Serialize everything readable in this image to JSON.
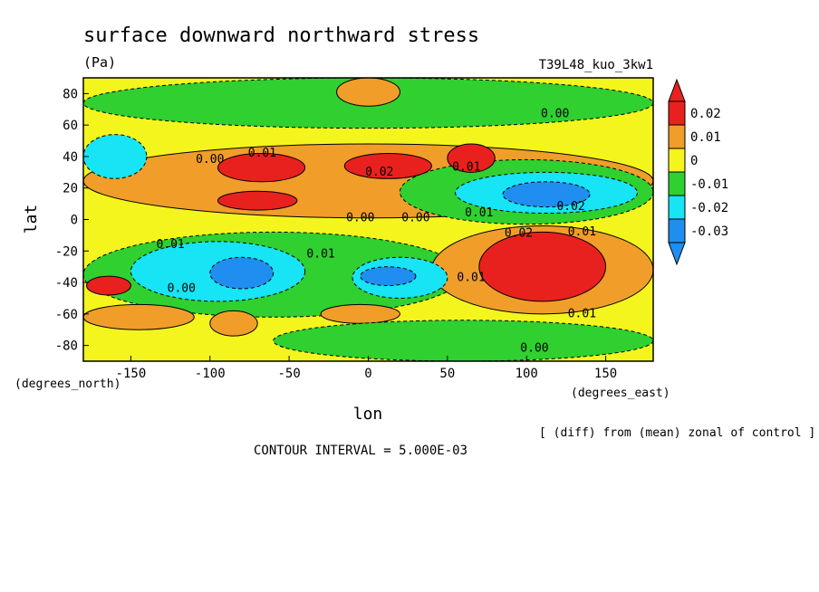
{
  "chart_data": {
    "type": "heatmap",
    "title": "surface downward northward stress",
    "units": "(Pa)",
    "run_label": "T39L48_kuo_3kw1",
    "xlabel": "lon",
    "ylabel": "lat",
    "x_units": "(degrees_east)",
    "y_units": "(degrees_north)",
    "xlim": [
      -180,
      180
    ],
    "ylim": [
      -90,
      90
    ],
    "x_ticks": [
      -150,
      -100,
      -50,
      0,
      50,
      100,
      150
    ],
    "y_ticks": [
      80,
      60,
      40,
      20,
      0,
      -20,
      -40,
      -60,
      -80
    ],
    "x_tick_labels": [
      "-150",
      "-100",
      "-50",
      "0",
      "50",
      "100",
      "150"
    ],
    "y_tick_labels": [
      "80",
      "60",
      "40",
      "20",
      "0",
      "-20",
      "-40",
      "-60",
      "-80"
    ],
    "note": "[ (diff) from (mean) zonal of control ]",
    "contour_interval": "CONTOUR INTERVAL = 5.000E-03",
    "colorbar": {
      "labels": [
        "0.02",
        "0.01",
        "0",
        "-0.01",
        "-0.02",
        "-0.03"
      ],
      "levels": [
        0.02,
        0.01,
        0,
        -0.01,
        -0.02,
        -0.03
      ],
      "colors": [
        "#e8211e",
        "#f09d2a",
        "#f5f51e",
        "#2fd02f",
        "#17e4f4",
        "#1f8ef0"
      ]
    },
    "background_level_color": "#f5f51e",
    "regions": [
      {
        "level": -0.01,
        "lon": [
          -180,
          180
        ],
        "lat": [
          58,
          90
        ]
      },
      {
        "level": 0.01,
        "lon": [
          -180,
          180
        ],
        "lat": [
          1,
          48
        ]
      },
      {
        "level": -0.01,
        "lon": [
          20,
          180
        ],
        "lat": [
          -3,
          38
        ]
      },
      {
        "level": -0.01,
        "lon": [
          -180,
          60
        ],
        "lat": [
          -62,
          -8
        ]
      },
      {
        "level": 0.01,
        "lon": [
          40,
          180
        ],
        "lat": [
          -60,
          -4
        ]
      },
      {
        "level": 0.02,
        "lon": [
          -95,
          -40
        ],
        "lat": [
          24,
          42
        ]
      },
      {
        "level": 0.02,
        "lon": [
          -95,
          -45
        ],
        "lat": [
          6,
          18
        ]
      },
      {
        "level": 0.02,
        "lon": [
          -15,
          40
        ],
        "lat": [
          26,
          42
        ]
      },
      {
        "level": 0.02,
        "lon": [
          50,
          80
        ],
        "lat": [
          30,
          48
        ]
      },
      {
        "level": 0.02,
        "lon": [
          70,
          150
        ],
        "lat": [
          -52,
          -8
        ]
      },
      {
        "level": 0.02,
        "lon": [
          -178,
          -150
        ],
        "lat": [
          -48,
          -36
        ]
      },
      {
        "level": -0.02,
        "lon": [
          55,
          170
        ],
        "lat": [
          4,
          30
        ]
      },
      {
        "level": -0.03,
        "lon": [
          85,
          140
        ],
        "lat": [
          8,
          24
        ]
      },
      {
        "level": -0.02,
        "lon": [
          -150,
          -40
        ],
        "lat": [
          -52,
          -14
        ]
      },
      {
        "level": -0.03,
        "lon": [
          -100,
          -60
        ],
        "lat": [
          -44,
          -24
        ]
      },
      {
        "level": -0.02,
        "lon": [
          -10,
          50
        ],
        "lat": [
          -50,
          -24
        ]
      },
      {
        "level": -0.03,
        "lon": [
          -5,
          30
        ],
        "lat": [
          -42,
          -30
        ]
      },
      {
        "level": -0.02,
        "lon": [
          -180,
          -140
        ],
        "lat": [
          26,
          54
        ]
      },
      {
        "level": 0.01,
        "lon": [
          -20,
          20
        ],
        "lat": [
          72,
          90
        ]
      },
      {
        "level": 0.01,
        "lon": [
          -100,
          -70
        ],
        "lat": [
          -74,
          -58
        ]
      },
      {
        "level": 0.01,
        "lon": [
          -30,
          20
        ],
        "lat": [
          -66,
          -54
        ]
      },
      {
        "level": 0.01,
        "lon": [
          -180,
          -110
        ],
        "lat": [
          -70,
          -54
        ]
      },
      {
        "level": -0.01,
        "lon": [
          -60,
          180
        ],
        "lat": [
          -90,
          -64
        ]
      }
    ],
    "contour_labels": [
      {
        "text": "0.00",
        "lon": -100,
        "lat": 38
      },
      {
        "text": "0.01",
        "lon": -67,
        "lat": 42
      },
      {
        "text": "0.02",
        "lon": 7,
        "lat": 30
      },
      {
        "text": "0.01",
        "lon": 62,
        "lat": 33
      },
      {
        "text": "0.00",
        "lon": 118,
        "lat": 67
      },
      {
        "text": "0.00",
        "lon": -5,
        "lat": 1
      },
      {
        "text": "0.00",
        "lon": 30,
        "lat": 1
      },
      {
        "text": "0.01",
        "lon": 70,
        "lat": 4
      },
      {
        "text": "0.02",
        "lon": 128,
        "lat": 8
      },
      {
        "text": "0.01",
        "lon": -125,
        "lat": -16
      },
      {
        "text": "0.01",
        "lon": -30,
        "lat": -22
      },
      {
        "text": "0.02",
        "lon": 95,
        "lat": -9
      },
      {
        "text": "0.01",
        "lon": 135,
        "lat": -8
      },
      {
        "text": "0.01",
        "lon": 65,
        "lat": -37
      },
      {
        "text": "0.00",
        "lon": -118,
        "lat": -44
      },
      {
        "text": "0.01",
        "lon": 135,
        "lat": -60
      },
      {
        "text": "0.00",
        "lon": 105,
        "lat": -82
      }
    ]
  }
}
